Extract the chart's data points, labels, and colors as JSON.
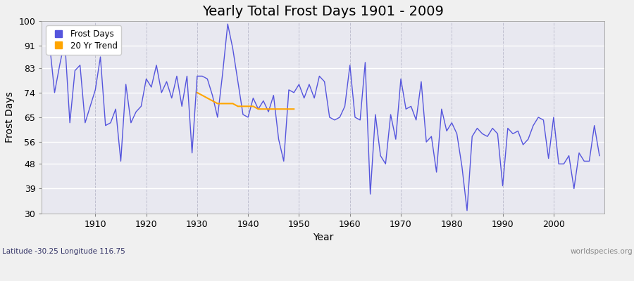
{
  "title": "Yearly Total Frost Days 1901 - 2009",
  "xlabel": "Year",
  "ylabel": "Frost Days",
  "subtitle": "Latitude -30.25 Longitude 116.75",
  "watermark": "worldspecies.org",
  "years": [
    1901,
    1902,
    1903,
    1904,
    1905,
    1906,
    1907,
    1908,
    1909,
    1910,
    1911,
    1912,
    1913,
    1914,
    1915,
    1916,
    1917,
    1918,
    1919,
    1920,
    1921,
    1922,
    1923,
    1924,
    1925,
    1926,
    1927,
    1928,
    1929,
    1930,
    1931,
    1932,
    1933,
    1934,
    1935,
    1936,
    1937,
    1938,
    1939,
    1940,
    1941,
    1942,
    1943,
    1944,
    1945,
    1946,
    1947,
    1948,
    1949,
    1950,
    1951,
    1952,
    1953,
    1954,
    1955,
    1956,
    1957,
    1958,
    1959,
    1960,
    1961,
    1962,
    1963,
    1964,
    1965,
    1966,
    1967,
    1968,
    1969,
    1970,
    1971,
    1972,
    1973,
    1974,
    1975,
    1976,
    1977,
    1978,
    1979,
    1980,
    1981,
    1982,
    1983,
    1984,
    1985,
    1986,
    1987,
    1988,
    1989,
    1990,
    1991,
    1992,
    1993,
    1994,
    1995,
    1996,
    1997,
    1998,
    1999,
    2000,
    2001,
    2002,
    2003,
    2004,
    2005,
    2006,
    2007,
    2008,
    2009
  ],
  "frost_days": [
    92,
    74,
    84,
    93,
    63,
    82,
    84,
    63,
    69,
    75,
    87,
    62,
    63,
    68,
    49,
    77,
    63,
    67,
    69,
    79,
    76,
    84,
    74,
    78,
    72,
    80,
    69,
    80,
    52,
    80,
    80,
    79,
    73,
    65,
    81,
    99,
    90,
    78,
    66,
    65,
    72,
    68,
    71,
    67,
    73,
    57,
    49,
    75,
    74,
    77,
    72,
    77,
    72,
    80,
    78,
    65,
    64,
    65,
    69,
    84,
    65,
    64,
    85,
    37,
    66,
    51,
    48,
    66,
    57,
    79,
    68,
    69,
    64,
    78,
    56,
    58,
    45,
    68,
    60,
    63,
    59,
    47,
    31,
    58,
    61,
    59,
    58,
    61,
    59,
    40,
    61,
    59,
    60,
    55,
    57,
    62,
    65,
    64,
    50,
    65,
    48,
    48,
    51,
    39,
    52,
    49,
    49,
    62,
    51
  ],
  "trend_years": [
    1930,
    1931,
    1932,
    1933,
    1934,
    1935,
    1936,
    1937,
    1938,
    1939,
    1940,
    1941,
    1942,
    1943,
    1944,
    1945,
    1946,
    1947,
    1948,
    1949
  ],
  "trend_values": [
    74,
    73,
    72,
    71,
    70,
    70,
    70,
    70,
    69,
    69,
    69,
    69,
    68,
    68,
    68,
    68,
    68,
    68,
    68,
    68
  ],
  "line_color": "#5555dd",
  "trend_color": "#FFA500",
  "fig_bg_color": "#f0f0f0",
  "plot_bg_color": "#e8e8f0",
  "ylim": [
    30,
    100
  ],
  "yticks": [
    30,
    39,
    48,
    56,
    65,
    74,
    83,
    91,
    100
  ],
  "xlim": [
    1899.5,
    2010
  ],
  "xticks": [
    1910,
    1920,
    1930,
    1940,
    1950,
    1960,
    1970,
    1980,
    1990,
    2000
  ],
  "title_fontsize": 14,
  "axis_fontsize": 10,
  "tick_fontsize": 9,
  "legend_fontsize": 8.5
}
